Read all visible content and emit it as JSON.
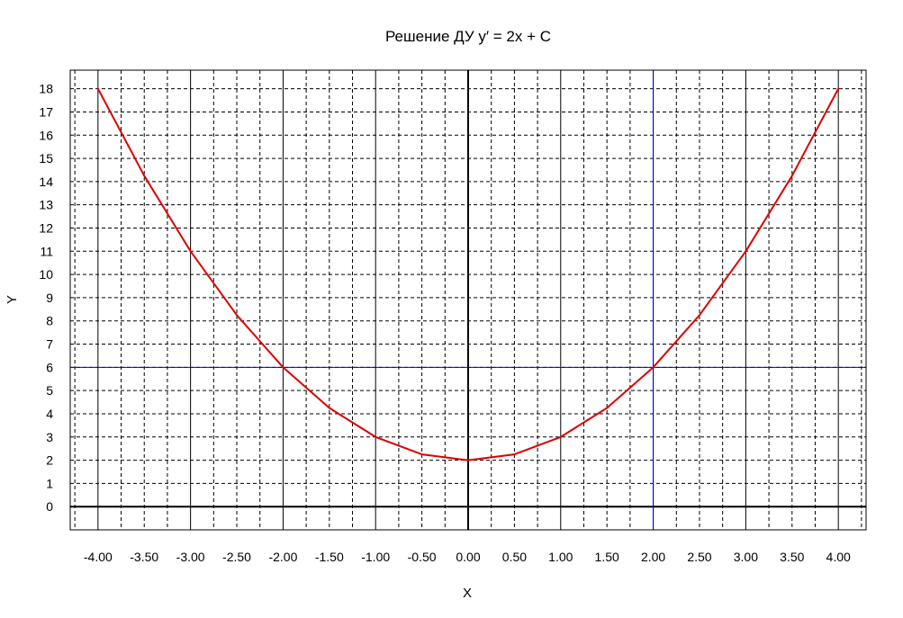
{
  "chart_data": {
    "type": "line",
    "title": "Решение ДУ y′ = 2x + C",
    "xlabel": "X",
    "ylabel": "Y",
    "xlim": [
      -4.3,
      4.3
    ],
    "ylim": [
      -1,
      18.8
    ],
    "x_ticks": [
      "-4.00",
      "-3.50",
      "-3.00",
      "-2.50",
      "-2.00",
      "-1.50",
      "-1.00",
      "-0.50",
      "0.00",
      "0.50",
      "1.00",
      "1.50",
      "2.00",
      "2.50",
      "3.00",
      "3.50",
      "4.00"
    ],
    "y_ticks": [
      "0",
      "1",
      "2",
      "3",
      "4",
      "5",
      "6",
      "7",
      "8",
      "9",
      "10",
      "11",
      "12",
      "13",
      "14",
      "15",
      "16",
      "17",
      "18"
    ],
    "grid": true,
    "series": [
      {
        "color": "#dd0000",
        "x": [
          -4.0,
          -3.5,
          -3.0,
          -2.5,
          -2.0,
          -1.5,
          -1.0,
          -0.5,
          0.0,
          0.5,
          1.0,
          1.5,
          2.0,
          2.5,
          3.0,
          3.5,
          4.0
        ],
        "y": [
          18.0,
          14.25,
          11.0,
          8.25,
          6.0,
          4.25,
          3.0,
          2.25,
          2.0,
          2.25,
          3.0,
          4.25,
          6.0,
          8.25,
          11.0,
          14.25,
          18.0
        ]
      }
    ],
    "reference_lines": [
      {
        "orientation": "horizontal",
        "value": 6,
        "color": "#0000cc"
      },
      {
        "orientation": "vertical",
        "value": 2,
        "color": "#0000cc"
      }
    ]
  }
}
